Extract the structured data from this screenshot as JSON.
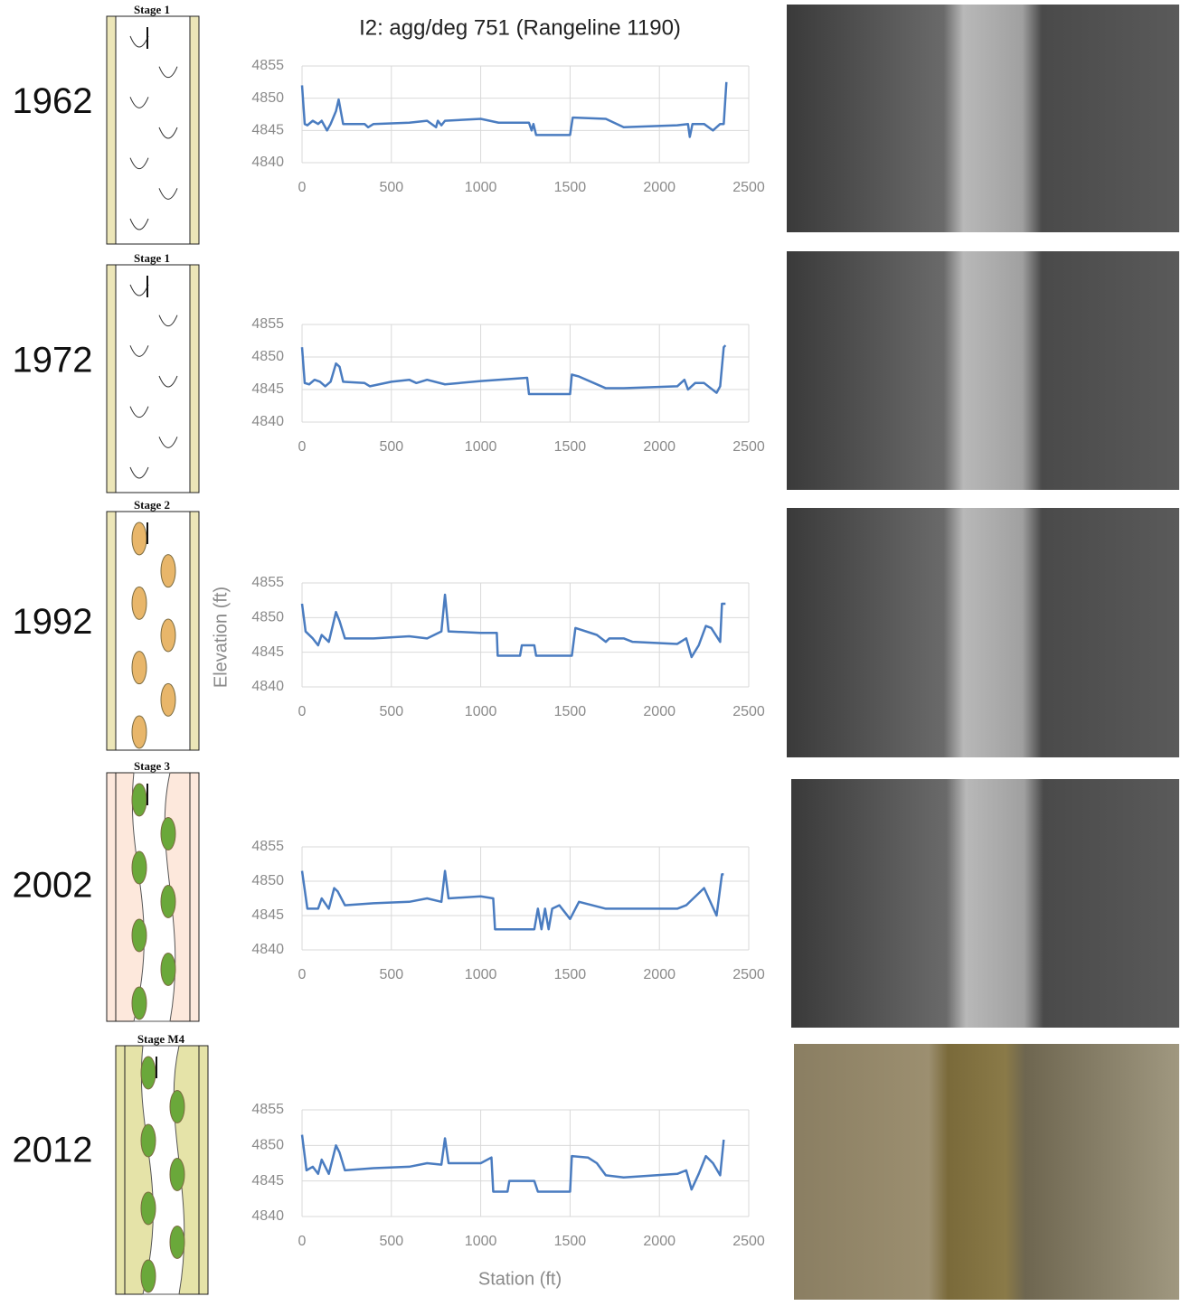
{
  "figure": {
    "title": "I2: agg/deg 751 (Rangeline 1190)",
    "y_label": "Elevation (ft)",
    "x_label": "Station (ft)"
  },
  "panels": [
    {
      "year": "1962",
      "stage": "Stage 1"
    },
    {
      "year": "1972",
      "stage": "Stage 1"
    },
    {
      "year": "1992",
      "stage": "Stage 2"
    },
    {
      "year": "2002",
      "stage": "Stage 3"
    },
    {
      "year": "2012",
      "stage": "Stage M4"
    }
  ],
  "chart_data": [
    {
      "type": "line",
      "color": "#4a7cc0",
      "grid": true,
      "xlim": [
        0,
        2500
      ],
      "ylim": [
        4840,
        4855
      ],
      "xticks": [
        0,
        500,
        1000,
        1500,
        2000,
        2500
      ],
      "yticks": [
        4840,
        4845,
        4850,
        4855
      ],
      "x": [
        0,
        15,
        30,
        60,
        90,
        110,
        140,
        160,
        190,
        205,
        230,
        350,
        370,
        400,
        600,
        700,
        750,
        760,
        780,
        800,
        1000,
        1100,
        1270,
        1285,
        1295,
        1310,
        1500,
        1515,
        1700,
        1800,
        2100,
        2160,
        2170,
        2185,
        2250,
        2300,
        2340,
        2360,
        2375
      ],
      "values": [
        4852,
        4846,
        4845.8,
        4846.5,
        4846,
        4846.5,
        4845,
        4846,
        4848,
        4849.8,
        4846,
        4846,
        4845.5,
        4846,
        4846.2,
        4846.5,
        4845.5,
        4846.5,
        4845.8,
        4846.5,
        4846.8,
        4846.2,
        4846.2,
        4845,
        4846,
        4844.3,
        4844.3,
        4847,
        4846.8,
        4845.5,
        4845.8,
        4846,
        4844,
        4846,
        4846,
        4845,
        4846,
        4846,
        4852.5
      ]
    },
    {
      "type": "line",
      "color": "#4a7cc0",
      "grid": true,
      "xlim": [
        0,
        2500
      ],
      "ylim": [
        4840,
        4855
      ],
      "xticks": [
        0,
        500,
        1000,
        1500,
        2000,
        2500
      ],
      "yticks": [
        4840,
        4845,
        4850,
        4855
      ],
      "x": [
        0,
        15,
        40,
        70,
        100,
        130,
        160,
        190,
        210,
        230,
        350,
        380,
        500,
        600,
        640,
        700,
        800,
        1000,
        1260,
        1270,
        1500,
        1510,
        1550,
        1700,
        1800,
        2100,
        2140,
        2160,
        2200,
        2250,
        2320,
        2340,
        2360,
        2370
      ],
      "values": [
        4851.5,
        4846,
        4845.8,
        4846.5,
        4846.2,
        4845.5,
        4846.2,
        4849,
        4848.5,
        4846.2,
        4846,
        4845.5,
        4846.2,
        4846.5,
        4846,
        4846.5,
        4845.8,
        4846.3,
        4846.8,
        4844.3,
        4844.3,
        4847.3,
        4847,
        4845.2,
        4845.2,
        4845.5,
        4846.5,
        4845,
        4846,
        4846,
        4844.5,
        4845.5,
        4851.5,
        4851.8
      ]
    },
    {
      "type": "line",
      "color": "#4a7cc0",
      "grid": true,
      "xlim": [
        0,
        2500
      ],
      "ylim": [
        4840,
        4855
      ],
      "xticks": [
        0,
        500,
        1000,
        1500,
        2000,
        2500
      ],
      "yticks": [
        4840,
        4845,
        4850,
        4855
      ],
      "x": [
        0,
        20,
        60,
        90,
        110,
        150,
        190,
        210,
        240,
        400,
        600,
        700,
        780,
        800,
        820,
        1000,
        1090,
        1095,
        1220,
        1230,
        1300,
        1310,
        1510,
        1530,
        1650,
        1700,
        1720,
        1800,
        1850,
        2100,
        2150,
        2180,
        2220,
        2260,
        2290,
        2340,
        2350,
        2370
      ],
      "values": [
        4852,
        4848,
        4847,
        4846,
        4847.5,
        4846.5,
        4850.8,
        4849.5,
        4847,
        4847,
        4847.3,
        4847,
        4848,
        4853.3,
        4848,
        4847.8,
        4847.8,
        4844.5,
        4844.5,
        4846,
        4846,
        4844.5,
        4844.5,
        4848.5,
        4847.5,
        4846.5,
        4847,
        4847,
        4846.5,
        4846.2,
        4847,
        4844.3,
        4846,
        4848.8,
        4848.5,
        4846.5,
        4852,
        4852
      ]
    },
    {
      "type": "line",
      "color": "#4a7cc0",
      "grid": true,
      "xlim": [
        0,
        2500
      ],
      "ylim": [
        4840,
        4855
      ],
      "xticks": [
        0,
        500,
        1000,
        1500,
        2000,
        2500
      ],
      "yticks": [
        4840,
        4845,
        4850,
        4855
      ],
      "x": [
        0,
        30,
        90,
        110,
        150,
        180,
        200,
        240,
        400,
        600,
        700,
        780,
        800,
        820,
        1000,
        1070,
        1080,
        1300,
        1320,
        1340,
        1360,
        1380,
        1400,
        1440,
        1470,
        1500,
        1550,
        1700,
        2100,
        2150,
        2250,
        2320,
        2350,
        2360
      ],
      "values": [
        4851.5,
        4846,
        4846,
        4847.5,
        4846,
        4849,
        4848.5,
        4846.5,
        4846.8,
        4847,
        4847.5,
        4847,
        4851.5,
        4847.5,
        4847.8,
        4847.5,
        4843,
        4843,
        4846,
        4843,
        4846,
        4843,
        4846,
        4846.5,
        4845.5,
        4844.5,
        4847,
        4846,
        4846,
        4846.5,
        4849,
        4845,
        4851,
        4851
      ]
    },
    {
      "type": "line",
      "color": "#4a7cc0",
      "grid": true,
      "xlim": [
        0,
        2500
      ],
      "ylim": [
        4840,
        4855
      ],
      "xticks": [
        0,
        500,
        1000,
        1500,
        2000,
        2500
      ],
      "yticks": [
        4840,
        4845,
        4850,
        4855
      ],
      "x": [
        0,
        25,
        60,
        90,
        110,
        150,
        190,
        210,
        240,
        400,
        600,
        700,
        780,
        800,
        820,
        1000,
        1060,
        1070,
        1150,
        1160,
        1300,
        1320,
        1500,
        1510,
        1600,
        1650,
        1700,
        1800,
        2100,
        2150,
        2180,
        2220,
        2260,
        2300,
        2340,
        2360
      ],
      "values": [
        4851.5,
        4846.5,
        4847,
        4846,
        4848,
        4846,
        4850,
        4849,
        4846.5,
        4846.8,
        4847,
        4847.5,
        4847.3,
        4851,
        4847.5,
        4847.5,
        4848.3,
        4843.5,
        4843.5,
        4845,
        4845,
        4843.5,
        4843.5,
        4848.5,
        4848.3,
        4847.5,
        4845.8,
        4845.5,
        4846,
        4846.5,
        4843.8,
        4846,
        4848.5,
        4847.5,
        4845.8,
        4850.8
      ]
    }
  ]
}
